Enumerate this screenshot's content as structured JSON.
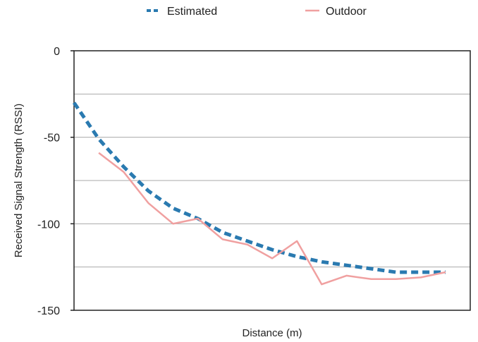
{
  "chart_data": {
    "type": "line",
    "title": "",
    "xlabel": "Distance (m)",
    "ylabel": "Received Signal Strength (RSSI)",
    "ylim": [
      -150,
      0
    ],
    "yticks": [
      0,
      -50,
      -100,
      -150
    ],
    "y_gridlines": [
      -25,
      -50,
      -75,
      -100,
      -125
    ],
    "grid": true,
    "legend_position": "top",
    "x": [
      0,
      1,
      2,
      3,
      4,
      5,
      6,
      7,
      8,
      9,
      10,
      11,
      12,
      13,
      14,
      15
    ],
    "series": [
      {
        "name": "Estimated",
        "style": "dashed",
        "color": "#2a7ab0",
        "values": [
          -30,
          -51,
          -67,
          -81,
          -91,
          -97,
          -105,
          -110,
          -115,
          -119,
          -122,
          -124,
          -126,
          -128,
          -128,
          -128
        ]
      },
      {
        "name": "Outdoor",
        "style": "solid",
        "color": "#f0a0a0",
        "values": [
          null,
          -59,
          -70,
          -88,
          -100,
          -97,
          -109,
          -112,
          -120,
          -110,
          -135,
          -130,
          -132,
          -132,
          -131,
          -128
        ]
      }
    ]
  }
}
